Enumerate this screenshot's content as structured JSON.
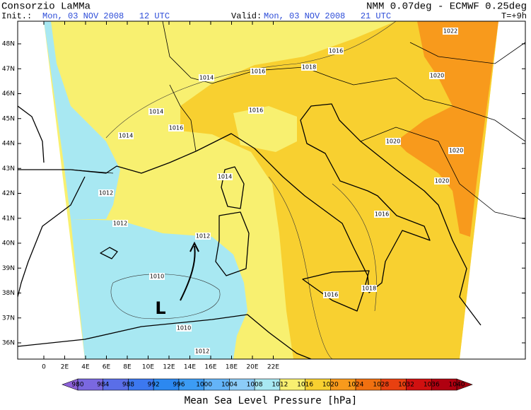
{
  "header": {
    "source": "Consorzio LaMMa",
    "model": "NMM 0.07deg - ECMWF 0.25deg",
    "init_label": "Init.:",
    "init_value": "Mon, 03 NOV 2008   12 UTC",
    "valid_label": "Valid:",
    "valid_value": "Mon, 03 NOV 2008   21 UTC",
    "step": "T=+9h"
  },
  "map": {
    "lat_labels": [
      "48N",
      "47N",
      "46N",
      "45N",
      "44N",
      "43N",
      "42N",
      "41N",
      "40N",
      "39N",
      "38N",
      "37N",
      "36N"
    ],
    "lon_labels": [
      "0",
      "2E",
      "4E",
      "6E",
      "8E",
      "10E",
      "12E",
      "14E",
      "16E",
      "18E",
      "20E",
      "22E"
    ],
    "low_label": "L",
    "isobar_labels": [
      "1016",
      "1018",
      "1016",
      "1014",
      "1014",
      "1014",
      "1016",
      "1016",
      "1022",
      "1020",
      "1020",
      "1020",
      "1020",
      "1014",
      "1012",
      "1012",
      "1012",
      "1016",
      "1010",
      "1016",
      "1018",
      "1010",
      "1012"
    ]
  },
  "colorbar": {
    "title": "Mean Sea Level Pressure [hPa]",
    "levels": [
      980,
      984,
      988,
      992,
      996,
      1000,
      1004,
      1008,
      1012,
      1016,
      1020,
      1024,
      1028,
      1032,
      1036,
      1040
    ],
    "colors": [
      "#7a68e0",
      "#5a6ee8",
      "#3c78f0",
      "#2c88f0",
      "#3c9cf4",
      "#64b4f8",
      "#8cccf8",
      "#a8e8f2",
      "#f8f070",
      "#f8d030",
      "#f89a1c",
      "#f07010",
      "#e84010",
      "#d01010",
      "#b00010"
    ],
    "under_color": "#8c60d8",
    "over_color": "#a00010"
  }
}
